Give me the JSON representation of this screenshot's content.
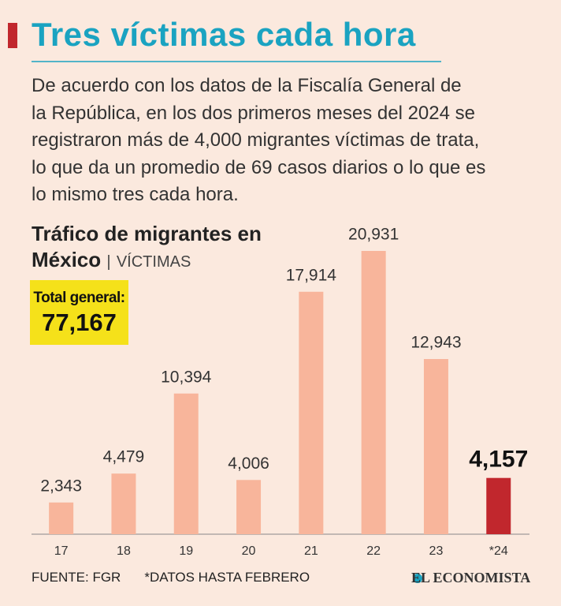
{
  "headline": "Tres víctimas cada hora",
  "intro": [
    "De acuerdo con los datos de la Fiscalía General de",
    "la República, en los dos primeros meses del 2024 se",
    "registraron más de 4,000 migrantes víctimas de trata,",
    "lo que da un promedio de 69 casos diarios o lo que es",
    "lo mismo tres cada hora."
  ],
  "total": {
    "label": "Total general:",
    "value": "77,167"
  },
  "footer": {
    "source": "FUENTE: FGR",
    "note": "*DATOS HASTA FEBRERO",
    "brand": "EL ECONOMISTA"
  },
  "chart_data": {
    "type": "bar",
    "title": "Tráfico de migrantes en México",
    "subtitle": "VÍCTIMAS",
    "categories": [
      "17",
      "18",
      "19",
      "20",
      "21",
      "22",
      "23",
      "*24"
    ],
    "values": [
      2343,
      4479,
      10394,
      4006,
      17914,
      20931,
      12943,
      4157
    ],
    "value_labels": [
      "2,343",
      "4,479",
      "10,394",
      "4,006",
      "17,914",
      "20,931",
      "12,943",
      "4,157"
    ],
    "colors": [
      "#f8b59b",
      "#f8b59b",
      "#f8b59b",
      "#f8b59b",
      "#f8b59b",
      "#f8b59b",
      "#f8b59b",
      "#c1272d"
    ]
  }
}
